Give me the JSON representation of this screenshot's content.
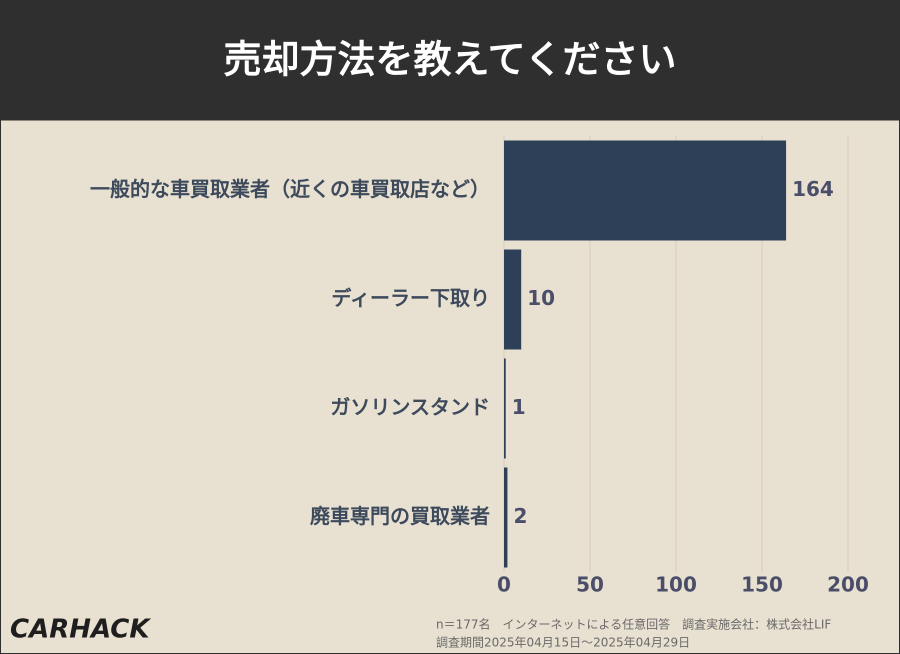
{
  "chart_data": {
    "type": "barh",
    "title": "売却方法を教えてください",
    "categories": [
      "一般的な車買取業者（近くの車買取店など）",
      "ディーラー下取り",
      "ガソリンスタンド",
      "廃車専門の買取業者"
    ],
    "values": [
      164,
      10,
      1,
      2
    ],
    "color": "#2e4057",
    "xlim": [
      0,
      200
    ],
    "xticks": [
      0,
      50,
      100,
      150,
      200
    ],
    "grid": true
  },
  "brand": "CARHACK",
  "footnotes": [
    "n＝177名　インターネットによる任意回答　調査実施会社：株式会社LIF",
    "調査期間2025年04月15日〜2025年04月29日"
  ]
}
